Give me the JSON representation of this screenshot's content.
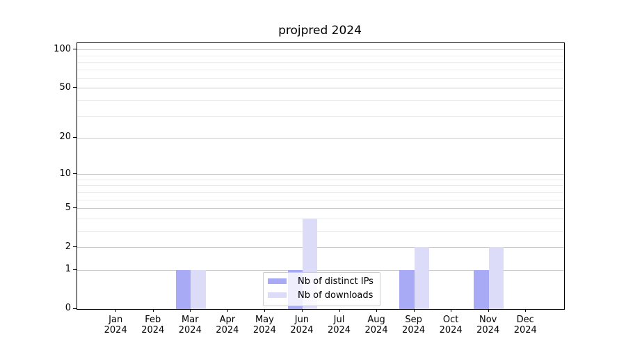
{
  "chart_data": {
    "type": "bar",
    "title": "projpred 2024",
    "categories": [
      "Jan 2024",
      "Feb 2024",
      "Mar 2024",
      "Apr 2024",
      "May 2024",
      "Jun 2024",
      "Jul 2024",
      "Aug 2024",
      "Sep 2024",
      "Oct 2024",
      "Nov 2024",
      "Dec 2024"
    ],
    "category_months": [
      "Jan",
      "Feb",
      "Mar",
      "Apr",
      "May",
      "Jun",
      "Jul",
      "Aug",
      "Sep",
      "Oct",
      "Nov",
      "Dec"
    ],
    "category_year": "2024",
    "series": [
      {
        "name": "Nb of distinct IPs",
        "color": "#a8aaf5",
        "values": [
          0,
          0,
          1,
          0,
          0,
          1,
          0,
          0,
          1,
          0,
          1,
          0
        ]
      },
      {
        "name": "Nb of downloads",
        "color": "#dcdcf8",
        "values": [
          0,
          0,
          1,
          0,
          0,
          4,
          0,
          0,
          2,
          0,
          2,
          0
        ]
      }
    ],
    "y_axis": {
      "scale": "log10(value+1)",
      "ticks": [
        0,
        1,
        2,
        5,
        10,
        20,
        50,
        100
      ],
      "minor_gridlines": [
        3,
        4,
        6,
        7,
        8,
        9,
        30,
        40,
        60,
        70,
        80,
        90
      ],
      "ylim": [
        0,
        113
      ]
    },
    "xlabel": "",
    "ylabel": "",
    "grid": true,
    "legend_position": "lower center"
  },
  "colors": {
    "bar_distinct_ips": "#a8aaf5",
    "bar_downloads": "#dcdcf8",
    "grid_major": "#c9c9c9",
    "grid_minor": "#ebebeb",
    "spine": "#000000",
    "legend_border": "#cccccc",
    "legend_background": "rgba(255,255,255,0.8)",
    "text": "#000000",
    "background": "#ffffff"
  }
}
